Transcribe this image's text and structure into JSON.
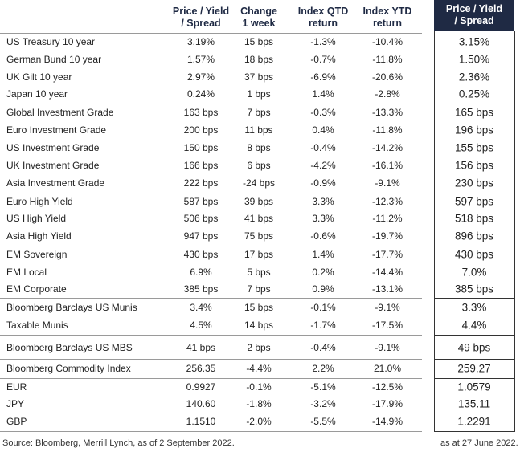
{
  "table": {
    "headers": [
      [
        "Price / Yield",
        "/ Spread"
      ],
      [
        "Change",
        "1 week"
      ],
      [
        "Index QTD",
        "return"
      ],
      [
        "Index YTD",
        "return"
      ]
    ],
    "side_header": [
      "Price / Yield",
      "/ Spread"
    ],
    "groups": [
      [
        [
          "US Treasury 10 year",
          "3.19%",
          "15 bps",
          "-1.3%",
          "-10.4%",
          "3.15%"
        ],
        [
          "German Bund 10 year",
          "1.57%",
          "18 bps",
          "-0.7%",
          "-11.8%",
          "1.50%"
        ],
        [
          "UK Gilt 10 year",
          "2.97%",
          "37 bps",
          "-6.9%",
          "-20.6%",
          "2.36%"
        ],
        [
          "Japan 10 year",
          "0.24%",
          "1 bps",
          "1.4%",
          "-2.8%",
          "0.25%"
        ]
      ],
      [
        [
          "Global Investment Grade",
          "163 bps",
          "7 bps",
          "-0.3%",
          "-13.3%",
          "165 bps"
        ],
        [
          "Euro Investment Grade",
          "200 bps",
          "11 bps",
          "0.4%",
          "-11.8%",
          "196 bps"
        ],
        [
          "US Investment Grade",
          "150 bps",
          "8 bps",
          "-0.4%",
          "-14.2%",
          "155 bps"
        ],
        [
          "UK Investment Grade",
          "166 bps",
          "6 bps",
          "-4.2%",
          "-16.1%",
          "156 bps"
        ],
        [
          "Asia Investment Grade",
          "222 bps",
          "-24 bps",
          "-0.9%",
          "-9.1%",
          "230 bps"
        ]
      ],
      [
        [
          "Euro High Yield",
          "587 bps",
          "39 bps",
          "3.3%",
          "-12.3%",
          "597 bps"
        ],
        [
          "US High Yield",
          "506 bps",
          "41 bps",
          "3.3%",
          "-11.2%",
          "518 bps"
        ],
        [
          "Asia High Yield",
          "947 bps",
          "75 bps",
          "-0.6%",
          "-19.7%",
          "896 bps"
        ]
      ],
      [
        [
          "EM Sovereign",
          "430 bps",
          "17 bps",
          "1.4%",
          "-17.7%",
          "430 bps"
        ],
        [
          "EM Local",
          "6.9%",
          "5 bps",
          "0.2%",
          "-14.4%",
          "7.0%"
        ],
        [
          "EM Corporate",
          "385 bps",
          "7 bps",
          "0.9%",
          "-13.1%",
          "385 bps"
        ]
      ],
      [
        [
          "Bloomberg Barclays US Munis",
          "3.4%",
          "15 bps",
          "-0.1%",
          "-9.1%",
          "3.3%"
        ],
        [
          "Taxable Munis",
          "4.5%",
          "14 bps",
          "-1.7%",
          "-17.5%",
          "4.4%"
        ]
      ],
      [
        [
          "Bloomberg Barclays US MBS",
          "41 bps",
          "2 bps",
          "-0.4%",
          "-9.1%",
          "49 bps"
        ]
      ],
      [
        [
          "Bloomberg Commodity Index",
          "256.35",
          "-4.4%",
          "2.2%",
          "21.0%",
          "259.27"
        ]
      ],
      [
        [
          "EUR",
          "0.9927",
          "-0.1%",
          "-5.1%",
          "-12.5%",
          "1.0579"
        ],
        [
          "JPY",
          "140.60",
          "-1.8%",
          "-3.2%",
          "-17.9%",
          "135.11"
        ],
        [
          "GBP",
          "1.1510",
          "-2.0%",
          "-5.5%",
          "-14.9%",
          "1.2291"
        ]
      ]
    ]
  },
  "source": "Source: Bloomberg, Merrill Lynch, as of 2 September 2022.",
  "side_note": "as at 27 June 2022."
}
